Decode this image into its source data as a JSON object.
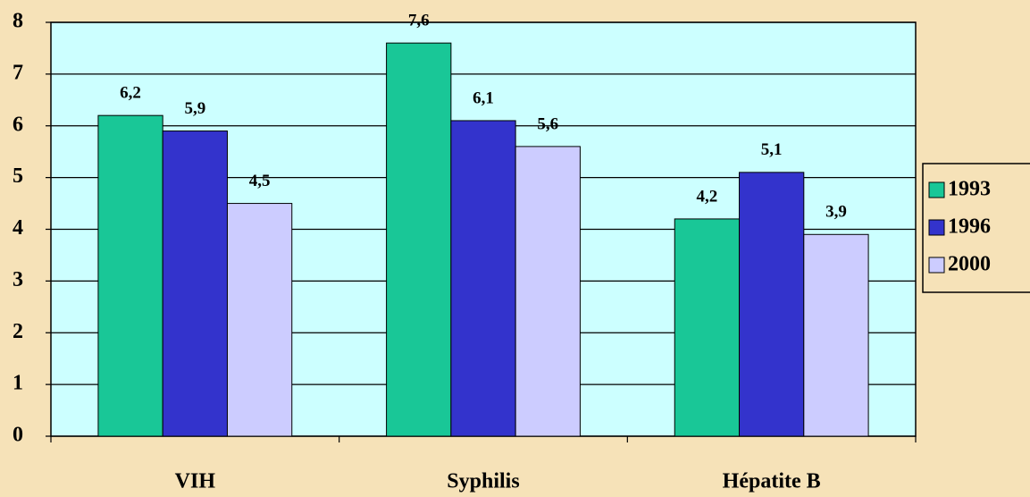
{
  "chart_data": {
    "type": "bar",
    "categories": [
      "VIH",
      "Syphilis",
      "Hépatite B"
    ],
    "series": [
      {
        "name": "1993",
        "color": "#19c797",
        "values": [
          6.2,
          7.6,
          4.2
        ],
        "value_labels": [
          "6,2",
          "7,6",
          "4,2"
        ]
      },
      {
        "name": "1996",
        "color": "#3333cc",
        "values": [
          5.9,
          6.1,
          5.1
        ],
        "value_labels": [
          "5,9",
          "6,1",
          "5,1"
        ]
      },
      {
        "name": "2000",
        "color": "#ccccff",
        "values": [
          4.5,
          5.6,
          3.9
        ],
        "value_labels": [
          "4,5",
          "5,6",
          "3,9"
        ]
      }
    ],
    "ylim": [
      0,
      8
    ],
    "yticks": [
      0,
      1,
      2,
      3,
      4,
      5,
      6,
      7,
      8
    ],
    "grid": true,
    "legend": "right"
  }
}
